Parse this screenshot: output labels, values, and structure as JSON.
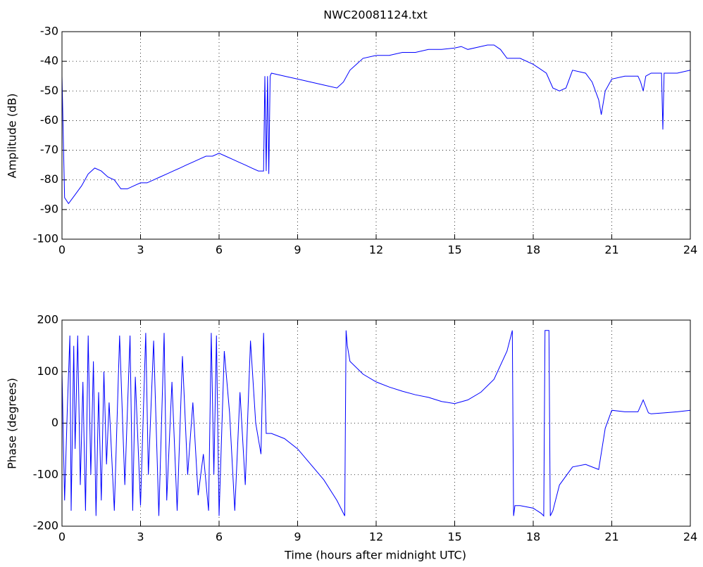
{
  "chart_data": [
    {
      "type": "line",
      "title": "NWC20081124.txt",
      "ylabel": "Amplitude (dB)",
      "color": "#0000ff",
      "grid": true,
      "xlim": [
        0,
        24
      ],
      "xticks": [
        0,
        3,
        6,
        9,
        12,
        15,
        18,
        21,
        24
      ],
      "ylim": [
        -100,
        -30
      ],
      "yticks": [
        -100,
        -90,
        -80,
        -70,
        -60,
        -50,
        -40,
        -30
      ],
      "x": [
        0,
        0.1,
        0.25,
        0.5,
        0.75,
        1,
        1.25,
        1.5,
        1.75,
        2,
        2.25,
        2.5,
        2.75,
        3,
        3.25,
        3.5,
        3.75,
        4,
        4.25,
        4.5,
        4.75,
        5,
        5.25,
        5.5,
        5.75,
        6,
        6.25,
        6.5,
        6.75,
        7,
        7.25,
        7.5,
        7.7,
        7.75,
        7.8,
        7.85,
        7.9,
        7.95,
        8,
        8.5,
        9,
        9.5,
        10,
        10.5,
        10.75,
        11,
        11.5,
        12,
        12.5,
        13,
        13.5,
        14,
        14.5,
        15,
        15.25,
        15.5,
        16,
        16.25,
        16.5,
        16.75,
        17,
        17.5,
        18,
        18.5,
        18.75,
        19,
        19.25,
        19.5,
        20,
        20.25,
        20.5,
        20.6,
        20.75,
        21,
        21.5,
        22,
        22.1,
        22.2,
        22.3,
        22.5,
        22.8,
        22.9,
        22.95,
        23,
        23.5,
        24
      ],
      "values": [
        -45,
        -86,
        -88,
        -85,
        -82,
        -78,
        -76,
        -77,
        -79,
        -80,
        -83,
        -83,
        -82,
        -81,
        -81,
        -80,
        -79,
        -78,
        -77,
        -76,
        -75,
        -74,
        -73,
        -72,
        -72,
        -71,
        -72,
        -73,
        -74,
        -75,
        -76,
        -77,
        -77,
        -45,
        -77,
        -45,
        -78,
        -45,
        -44,
        -45,
        -46,
        -47,
        -48,
        -49,
        -47,
        -43,
        -39,
        -38,
        -38,
        -37,
        -37,
        -36,
        -36,
        -35.5,
        -35,
        -36,
        -35,
        -34.5,
        -34.5,
        -36,
        -39,
        -39,
        -41,
        -44,
        -49,
        -50,
        -49,
        -43,
        -44,
        -47,
        -53,
        -58,
        -50,
        -46,
        -45,
        -45,
        -47,
        -50,
        -45,
        -44,
        -44,
        -44,
        -63,
        -44,
        -44,
        -43
      ]
    },
    {
      "type": "line",
      "xlabel": "Time (hours after midnight UTC)",
      "ylabel": "Phase (degrees)",
      "color": "#0000ff",
      "grid": true,
      "xlim": [
        0,
        24
      ],
      "xticks": [
        0,
        3,
        6,
        9,
        12,
        15,
        18,
        21,
        24
      ],
      "ylim": [
        -200,
        200
      ],
      "yticks": [
        -200,
        -100,
        0,
        100,
        200
      ],
      "x": [
        0,
        0.1,
        0.2,
        0.3,
        0.35,
        0.45,
        0.5,
        0.6,
        0.7,
        0.8,
        0.9,
        1.0,
        1.1,
        1.2,
        1.3,
        1.4,
        1.5,
        1.6,
        1.7,
        1.8,
        2.0,
        2.2,
        2.4,
        2.6,
        2.7,
        2.8,
        3.0,
        3.2,
        3.3,
        3.5,
        3.7,
        3.9,
        4.0,
        4.2,
        4.4,
        4.6,
        4.8,
        5.0,
        5.2,
        5.4,
        5.6,
        5.7,
        5.8,
        5.9,
        6.0,
        6.2,
        6.4,
        6.6,
        6.8,
        7.0,
        7.2,
        7.4,
        7.6,
        7.7,
        7.8,
        8.0,
        8.5,
        9,
        9.5,
        10,
        10.5,
        10.8,
        10.85,
        10.9,
        11,
        11.5,
        12,
        12.5,
        13,
        13.5,
        14,
        14.5,
        15,
        15.5,
        16,
        16.5,
        17,
        17.2,
        17.25,
        17.3,
        17.5,
        18,
        18.3,
        18.4,
        18.45,
        18.6,
        18.65,
        18.75,
        19,
        19.5,
        20,
        20.5,
        20.75,
        21,
        21.5,
        22,
        22.2,
        22.4,
        22.5,
        23,
        23.5,
        24
      ],
      "values": [
        100,
        -150,
        20,
        170,
        -170,
        150,
        -50,
        170,
        -120,
        80,
        -170,
        170,
        -100,
        120,
        -180,
        60,
        -150,
        100,
        -80,
        40,
        -170,
        170,
        -120,
        170,
        -170,
        90,
        -160,
        175,
        -100,
        160,
        -180,
        175,
        -150,
        80,
        -170,
        130,
        -100,
        40,
        -140,
        -60,
        -170,
        175,
        -100,
        170,
        -180,
        140,
        20,
        -170,
        60,
        -120,
        160,
        0,
        -60,
        175,
        -20,
        -20,
        -30,
        -50,
        -80,
        -110,
        -150,
        -180,
        180,
        150,
        120,
        95,
        80,
        70,
        62,
        55,
        50,
        42,
        38,
        45,
        60,
        85,
        140,
        180,
        -180,
        -160,
        -160,
        -165,
        -175,
        -180,
        180,
        180,
        -180,
        -170,
        -120,
        -85,
        -80,
        -90,
        -10,
        25,
        22,
        22,
        45,
        20,
        18,
        20,
        22,
        25
      ]
    }
  ]
}
